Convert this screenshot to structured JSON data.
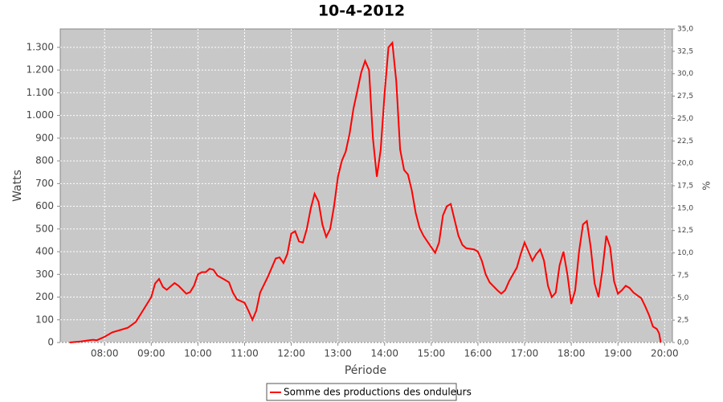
{
  "chart_data": {
    "type": "line",
    "title": "10-4-2012",
    "x_label": "Période",
    "y_label": "Watts",
    "y2_label": "%",
    "x": [
      "07:15",
      "07:30",
      "07:40",
      "07:45",
      "07:50",
      "08:00",
      "08:10",
      "08:20",
      "08:30",
      "08:40",
      "08:50",
      "09:00",
      "09:05",
      "09:10",
      "09:15",
      "09:20",
      "09:30",
      "09:35",
      "09:45",
      "09:50",
      "09:55",
      "10:00",
      "10:05",
      "10:10",
      "10:15",
      "10:20",
      "10:25",
      "10:35",
      "10:40",
      "10:45",
      "10:50",
      "11:00",
      "11:05",
      "11:10",
      "11:15",
      "11:20",
      "11:30",
      "11:40",
      "11:45",
      "11:50",
      "11:55",
      "12:00",
      "12:05",
      "12:10",
      "12:15",
      "12:20",
      "12:25",
      "12:30",
      "12:35",
      "12:40",
      "12:45",
      "12:50",
      "12:55",
      "13:00",
      "13:05",
      "13:10",
      "13:15",
      "13:20",
      "13:25",
      "13:30",
      "13:35",
      "13:40",
      "13:45",
      "13:50",
      "13:55",
      "14:00",
      "14:05",
      "14:10",
      "14:15",
      "14:20",
      "14:25",
      "14:30",
      "14:35",
      "14:40",
      "14:45",
      "14:50",
      "15:00",
      "15:05",
      "15:10",
      "15:15",
      "15:20",
      "15:25",
      "15:30",
      "15:35",
      "15:40",
      "15:45",
      "15:55",
      "16:00",
      "16:05",
      "16:10",
      "16:15",
      "16:25",
      "16:30",
      "16:35",
      "16:40",
      "16:50",
      "16:55",
      "17:00",
      "17:05",
      "17:10",
      "17:15",
      "17:20",
      "17:25",
      "17:30",
      "17:35",
      "17:40",
      "17:45",
      "17:50",
      "17:55",
      "18:00",
      "18:05",
      "18:10",
      "18:15",
      "18:20",
      "18:25",
      "18:30",
      "18:35",
      "18:40",
      "18:45",
      "18:50",
      "18:55",
      "19:00",
      "19:05",
      "19:10",
      "19:15",
      "19:20",
      "19:30",
      "19:35",
      "19:40",
      "19:45",
      "19:50",
      "19:53",
      "19:55"
    ],
    "series": [
      {
        "name": "Somme des productions des onduleurs",
        "color": "#ff0000",
        "values": [
          0,
          5,
          10,
          12,
          10,
          25,
          45,
          55,
          65,
          90,
          145,
          200,
          260,
          280,
          245,
          232,
          262,
          250,
          215,
          222,
          250,
          300,
          310,
          310,
          325,
          320,
          295,
          275,
          265,
          220,
          190,
          175,
          140,
          100,
          140,
          220,
          290,
          370,
          375,
          350,
          390,
          480,
          490,
          445,
          440,
          500,
          590,
          655,
          620,
          520,
          465,
          500,
          600,
          730,
          800,
          840,
          920,
          1030,
          1110,
          1190,
          1240,
          1200,
          900,
          730,
          850,
          1100,
          1300,
          1320,
          1150,
          850,
          760,
          740,
          670,
          570,
          505,
          470,
          420,
          395,
          440,
          560,
          600,
          610,
          540,
          470,
          430,
          415,
          410,
          400,
          360,
          300,
          265,
          230,
          215,
          230,
          270,
          330,
          390,
          440,
          400,
          360,
          390,
          410,
          360,
          250,
          200,
          220,
          340,
          400,
          300,
          170,
          230,
          400,
          520,
          535,
          420,
          260,
          200,
          320,
          470,
          420,
          270,
          215,
          230,
          250,
          240,
          220,
          195,
          160,
          120,
          70,
          60,
          40,
          0
        ]
      }
    ],
    "xlim": [
      "07:03",
      "20:10"
    ],
    "xticks": [
      "08:00",
      "09:00",
      "10:00",
      "11:00",
      "12:00",
      "13:00",
      "14:00",
      "15:00",
      "16:00",
      "17:00",
      "18:00",
      "19:00",
      "20:00"
    ],
    "ylim": [
      0,
      1381
    ],
    "yticks": [
      0,
      100,
      200,
      300,
      400,
      500,
      600,
      700,
      800,
      900,
      {
        "value": 1000,
        "label": "1.000"
      },
      {
        "value": 1100,
        "label": "1.100"
      },
      {
        "value": 1200,
        "label": "1.200"
      },
      {
        "value": 1300,
        "label": "1.300"
      }
    ],
    "y2lim": [
      0,
      35
    ],
    "y2ticks": [
      {
        "value": 0,
        "label": "0,0"
      },
      {
        "value": 2.5,
        "label": "2,5"
      },
      {
        "value": 5,
        "label": "5,0"
      },
      {
        "value": 7.5,
        "label": "7,5"
      },
      {
        "value": 10,
        "label": "10,0"
      },
      {
        "value": 12.5,
        "label": "12,5"
      },
      {
        "value": 15,
        "label": "15,0"
      },
      {
        "value": 17.5,
        "label": "17,5"
      },
      {
        "value": 20,
        "label": "20,0"
      },
      {
        "value": 22.5,
        "label": "22,5"
      },
      {
        "value": 25,
        "label": "25,0"
      },
      {
        "value": 27.5,
        "label": "27,5"
      },
      {
        "value": 30,
        "label": "30,0"
      },
      {
        "value": 32.5,
        "label": "32,5"
      },
      {
        "value": 35,
        "label": "35,0"
      }
    ],
    "grid": true,
    "legend": "bottom"
  }
}
